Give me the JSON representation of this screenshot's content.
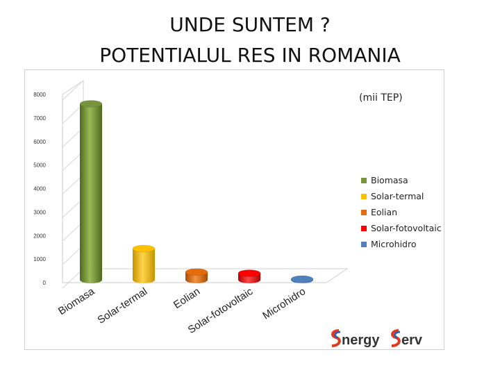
{
  "slide": {
    "title_line1": "UNDE SUNTEM ?",
    "title_line2": "POTENTIALUL RES IN ROMANIA"
  },
  "chart_data": {
    "type": "bar",
    "title": "",
    "unit_label": "(mii TEP)",
    "categories": [
      "Biomasa",
      "Solar-termal",
      "Eolian",
      "Solar-fotovoltaic",
      "Microhidro"
    ],
    "values": [
      7600,
      1450,
      450,
      400,
      150
    ],
    "colors": [
      "#77933C",
      "#FFC000",
      "#E46C0A",
      "#FF0000",
      "#4F81BD"
    ],
    "yticks": [
      0,
      1000,
      2000,
      3000,
      4000,
      5000,
      6000,
      7000,
      8000
    ],
    "ylim": [
      0,
      8000
    ],
    "legend_position": "right",
    "grid": false
  },
  "legend": {
    "items": [
      {
        "label": "Biomasa",
        "color": "#77933C"
      },
      {
        "label": "Solar-termal",
        "color": "#FFC000"
      },
      {
        "label": "Eolian",
        "color": "#E46C0A"
      },
      {
        "label": "Solar-fotovoltaic",
        "color": "#FF0000"
      },
      {
        "label": "Microhidro",
        "color": "#4F81BD"
      }
    ]
  },
  "logo": {
    "text": "nergy erv",
    "icon": "energyserv-logo-s-icon"
  }
}
